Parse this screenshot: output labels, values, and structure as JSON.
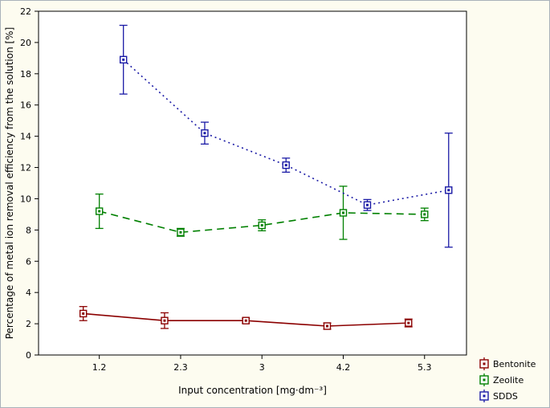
{
  "window": {
    "background": "#fdfcf0",
    "plot_background": "#ffffff",
    "frame_color": "#000000"
  },
  "chart_data": {
    "type": "line",
    "title": "",
    "xlabel": "Input concentration [mg·dm⁻³]",
    "ylabel": "Percentage of metal ion removal efficiency from the solution [%]",
    "categories": [
      "1.2",
      "2.3",
      "3",
      "4.2",
      "5.3"
    ],
    "ylim": [
      0,
      22
    ],
    "ytick_step": 2,
    "grid": false,
    "legend_position": "bottom-right",
    "marker_style": "open-square-with-center-dot",
    "error_bars": true,
    "series": [
      {
        "name": "Bentonite",
        "color": "#8b0000",
        "line_style": "solid",
        "values": [
          2.65,
          2.2,
          2.2,
          1.85,
          2.05
        ],
        "errors": [
          0.45,
          0.5,
          0.15,
          0.2,
          0.25
        ]
      },
      {
        "name": "Zeolite",
        "color": "#008000",
        "line_style": "dashed",
        "values": [
          9.2,
          7.85,
          8.3,
          9.1,
          9.0
        ],
        "errors": [
          1.1,
          0.25,
          0.35,
          1.7,
          0.4
        ]
      },
      {
        "name": "SDDS",
        "color": "#1a1aa6",
        "line_style": "dotted",
        "values": [
          18.9,
          14.2,
          12.15,
          9.6,
          10.55
        ],
        "errors": [
          2.2,
          0.7,
          0.45,
          0.35,
          3.65
        ]
      }
    ]
  }
}
